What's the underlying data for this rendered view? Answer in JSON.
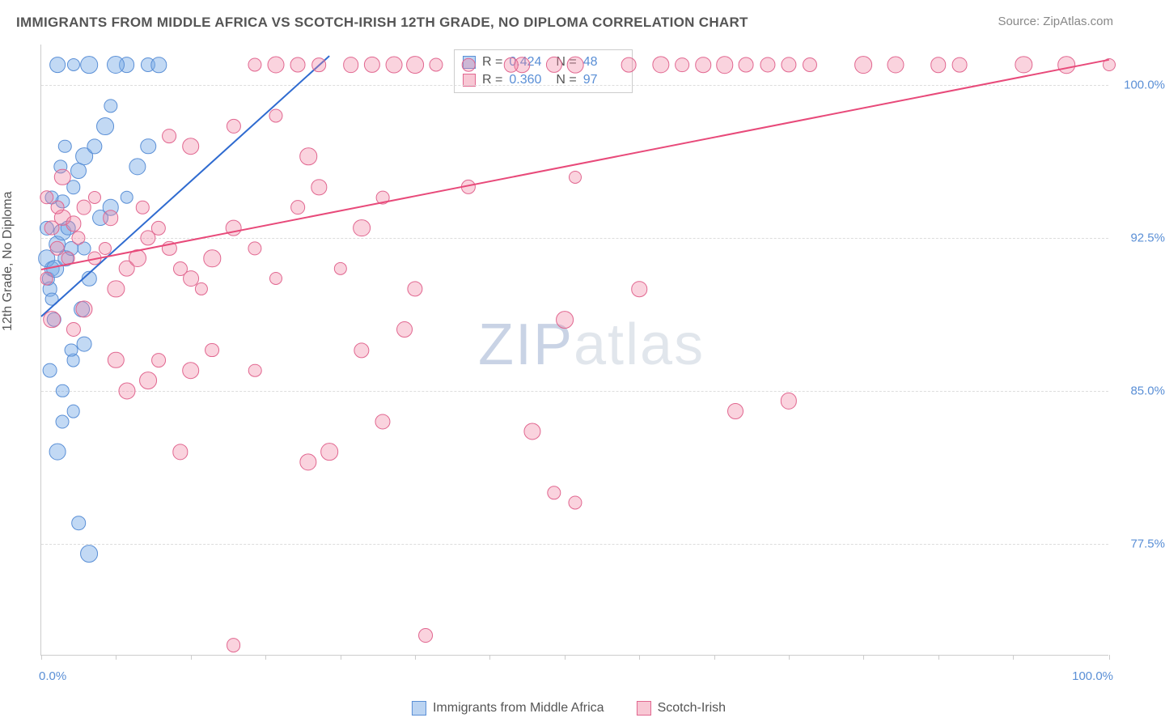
{
  "title": "IMMIGRANTS FROM MIDDLE AFRICA VS SCOTCH-IRISH 12TH GRADE, NO DIPLOMA CORRELATION CHART",
  "source": "Source: ZipAtlas.com",
  "ylabel": "12th Grade, No Diploma",
  "watermark_a": "ZIP",
  "watermark_b": "atlas",
  "chart": {
    "type": "scatter",
    "x_domain": [
      0,
      100
    ],
    "y_domain": [
      72,
      102
    ],
    "x_ticks": [
      0,
      7,
      14,
      21,
      28,
      35,
      42,
      49,
      56,
      63,
      70,
      77,
      84,
      91,
      100
    ],
    "x_label_min": "0.0%",
    "x_label_max": "100.0%",
    "y_ticks": [
      {
        "v": 100.0,
        "label": "100.0%"
      },
      {
        "v": 92.5,
        "label": "92.5%"
      },
      {
        "v": 85.0,
        "label": "85.0%"
      },
      {
        "v": 77.5,
        "label": "77.5%"
      }
    ],
    "grid_color": "#dddddd",
    "background_color": "#ffffff",
    "series": [
      {
        "name": "Immigrants from Middle Africa",
        "key": "blue",
        "point_fill": "rgba(120,170,230,0.45)",
        "point_stroke": "#5a8fd6",
        "line_color": "#2f6bd0",
        "swatch_fill": "rgba(120,170,230,0.5)",
        "swatch_stroke": "#5a8fd6",
        "R": "0.424",
        "N": "48",
        "trend": {
          "x1": 0,
          "y1": 88.7,
          "x2": 27,
          "y2": 101.5
        },
        "points": [
          [
            1,
            91
          ],
          [
            1.5,
            92.2
          ],
          [
            2,
            92.8
          ],
          [
            2.5,
            93
          ],
          [
            0.8,
            90
          ],
          [
            1,
            89.5
          ],
          [
            1.2,
            88.5
          ],
          [
            2,
            94.3
          ],
          [
            3,
            95
          ],
          [
            3.5,
            95.8
          ],
          [
            4,
            96.5
          ],
          [
            5,
            97
          ],
          [
            6,
            98
          ],
          [
            6.5,
            99
          ],
          [
            10,
            101
          ],
          [
            11,
            101
          ],
          [
            8,
            101
          ],
          [
            4,
            87.3
          ],
          [
            3,
            86.5
          ],
          [
            2,
            85
          ],
          [
            2,
            83.5
          ],
          [
            3,
            84
          ],
          [
            1.5,
            82
          ],
          [
            3.5,
            78.5
          ],
          [
            4.5,
            77
          ],
          [
            1,
            94.5
          ],
          [
            0.5,
            91.5
          ],
          [
            0.7,
            90.5
          ],
          [
            1.3,
            91
          ],
          [
            2.3,
            91.5
          ],
          [
            2.8,
            92
          ],
          [
            5.5,
            93.5
          ],
          [
            6.5,
            94
          ],
          [
            8,
            94.5
          ],
          [
            9,
            96
          ],
          [
            10,
            97
          ],
          [
            7,
            101
          ],
          [
            1.8,
            96
          ],
          [
            2.2,
            97
          ],
          [
            0.5,
            93
          ],
          [
            4.5,
            90.5
          ],
          [
            3.8,
            89
          ],
          [
            2.8,
            87
          ],
          [
            0.8,
            86
          ],
          [
            4.5,
            101
          ],
          [
            4,
            92
          ],
          [
            1.5,
            101
          ],
          [
            3,
            101
          ]
        ]
      },
      {
        "name": "Scotch-Irish",
        "key": "pink",
        "point_fill": "rgba(240,130,160,0.35)",
        "point_stroke": "#e16790",
        "line_color": "#e84a7a",
        "swatch_fill": "rgba(240,130,160,0.45)",
        "swatch_stroke": "#e16790",
        "R": "0.360",
        "N": "97",
        "trend": {
          "x1": 0,
          "y1": 91.0,
          "x2": 100,
          "y2": 101.3
        },
        "points": [
          [
            1,
            93
          ],
          [
            2,
            93.5
          ],
          [
            3,
            93.2
          ],
          [
            4,
            94
          ],
          [
            1.5,
            92
          ],
          [
            2.5,
            91.5
          ],
          [
            0.5,
            90.5
          ],
          [
            5,
            91.5
          ],
          [
            6,
            92
          ],
          [
            7,
            90
          ],
          [
            8,
            91
          ],
          [
            9,
            91.5
          ],
          [
            10,
            92.5
          ],
          [
            11,
            93
          ],
          [
            12,
            92
          ],
          [
            13,
            91
          ],
          [
            14,
            90.5
          ],
          [
            15,
            90
          ],
          [
            16,
            91.5
          ],
          [
            18,
            93
          ],
          [
            20,
            92
          ],
          [
            22,
            90.5
          ],
          [
            24,
            94
          ],
          [
            26,
            95
          ],
          [
            28,
            91
          ],
          [
            30,
            93
          ],
          [
            32,
            94.5
          ],
          [
            35,
            90
          ],
          [
            25,
            96.5
          ],
          [
            14,
            97
          ],
          [
            12,
            97.5
          ],
          [
            18,
            98
          ],
          [
            22,
            98.5
          ],
          [
            10,
            85.5
          ],
          [
            14,
            86
          ],
          [
            8,
            85
          ],
          [
            11,
            86.5
          ],
          [
            20,
            86
          ],
          [
            25,
            81.5
          ],
          [
            27,
            82
          ],
          [
            30,
            87
          ],
          [
            34,
            88
          ],
          [
            24,
            101
          ],
          [
            26,
            101
          ],
          [
            29,
            101
          ],
          [
            31,
            101
          ],
          [
            33,
            101
          ],
          [
            35,
            101
          ],
          [
            37,
            101
          ],
          [
            40,
            101
          ],
          [
            45,
            101
          ],
          [
            50,
            101
          ],
          [
            58,
            101
          ],
          [
            60,
            101
          ],
          [
            66,
            101
          ],
          [
            70,
            101
          ],
          [
            72,
            101
          ],
          [
            80,
            101
          ],
          [
            86,
            101
          ],
          [
            92,
            101
          ],
          [
            100,
            101
          ],
          [
            50,
            95.5
          ],
          [
            46,
            83
          ],
          [
            49,
            88.5
          ],
          [
            48,
            80
          ],
          [
            50,
            79.5
          ],
          [
            36,
            73
          ],
          [
            18,
            72.5
          ],
          [
            65,
            84
          ],
          [
            70,
            84.5
          ],
          [
            56,
            90
          ],
          [
            1,
            88.5
          ],
          [
            3,
            88
          ],
          [
            5,
            94.5
          ],
          [
            2,
            95.5
          ],
          [
            1.5,
            94
          ],
          [
            4,
            89
          ],
          [
            7,
            86.5
          ],
          [
            13,
            82
          ],
          [
            32,
            83.5
          ],
          [
            20,
            101
          ],
          [
            22,
            101
          ],
          [
            64,
            101
          ],
          [
            68,
            101
          ],
          [
            0.5,
            94.5
          ],
          [
            3.5,
            92.5
          ],
          [
            6.5,
            93.5
          ],
          [
            9.5,
            94
          ],
          [
            16,
            87
          ],
          [
            40,
            95
          ],
          [
            44,
            101
          ],
          [
            48,
            101
          ],
          [
            55,
            101
          ],
          [
            77,
            101
          ],
          [
            84,
            101
          ],
          [
            96,
            101
          ],
          [
            62,
            101
          ]
        ]
      }
    ]
  },
  "legend_top": {
    "R_label": "R =",
    "N_label": "N ="
  },
  "legend_bottom": {
    "items": [
      "Immigrants from Middle Africa",
      "Scotch-Irish"
    ]
  }
}
